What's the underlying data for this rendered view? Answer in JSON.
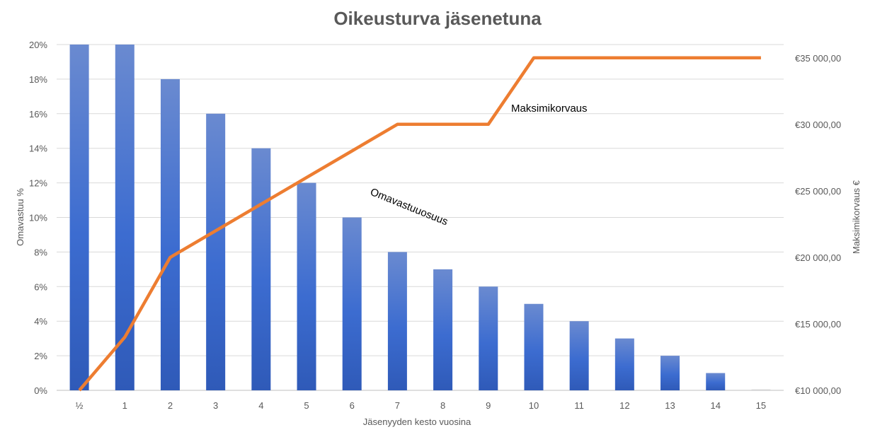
{
  "chart_data": {
    "type": "bar",
    "title": "Oikeusturva jäsenetuna",
    "xlabel": "Jäsenyyden kesto vuosina",
    "ylabel": "Omavastuu %",
    "y2label": "Maksimikorvaus €",
    "categories": [
      "½",
      "1",
      "2",
      "3",
      "4",
      "5",
      "6",
      "7",
      "8",
      "9",
      "10",
      "11",
      "12",
      "13",
      "14",
      "15"
    ],
    "ylim": [
      0,
      20
    ],
    "y_ticks": [
      "0%",
      "2%",
      "4%",
      "6%",
      "8%",
      "10%",
      "12%",
      "14%",
      "16%",
      "18%",
      "20%"
    ],
    "y2lim": [
      10000,
      36000
    ],
    "y2_ticks": [
      "€10 000,00",
      "€15 000,00",
      "€20 000,00",
      "€25 000,00",
      "€30 000,00",
      "€35 000,00"
    ],
    "grid": true,
    "series": [
      {
        "kind": "bar",
        "axis": "left",
        "color": "#4472c4",
        "values": [
          20,
          20,
          18,
          16,
          14,
          12,
          10,
          8,
          7,
          6,
          5,
          4,
          3,
          2,
          1,
          0
        ]
      },
      {
        "kind": "line",
        "axis": "right",
        "color": "#ed7d31",
        "values": [
          10000,
          14000,
          20000,
          22000,
          24000,
          26000,
          28000,
          30000,
          30000,
          30000,
          35000,
          35000,
          35000,
          35000,
          35000,
          35000
        ]
      }
    ],
    "annotations": [
      {
        "text": "Maksimikorvaus",
        "x": "10",
        "y": 30000,
        "axis": "right"
      },
      {
        "text": "Omavastuuosuus",
        "x": "7",
        "y": 11,
        "axis": "left",
        "rotate": 22
      }
    ]
  }
}
